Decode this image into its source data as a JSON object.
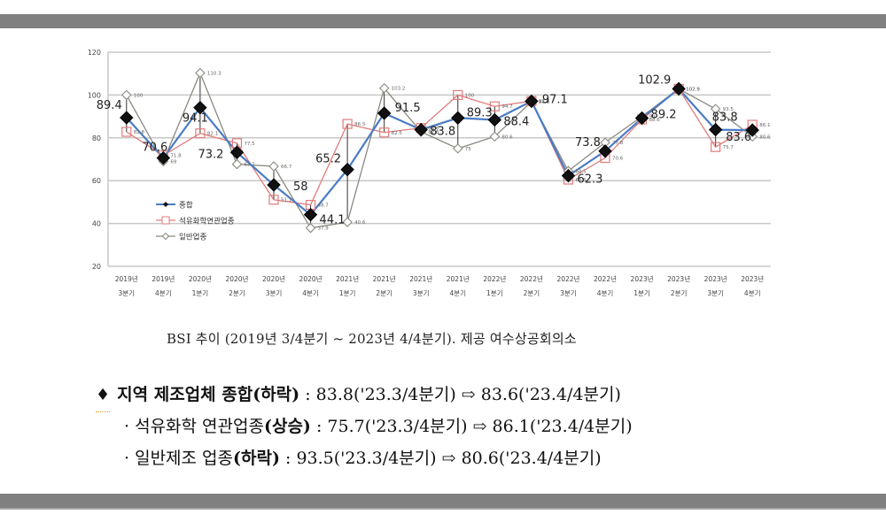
{
  "page": {
    "caption": "BSI 추이 (2019년 3/4분기 ~ 2023년 4/4분기). 제공 여수상공회의소",
    "summary": {
      "main": {
        "bullet": "♦",
        "label": "지역 제조업체 종합(하락)",
        "value": ": 83.8('23.3/4분기) ⇨ 83.6('23.4/4분기)"
      },
      "sub1": {
        "bullet": "·",
        "label_plain": "석유화학 연관업종",
        "label_bold": "(상승)",
        "value": ": 75.7('23.3/4분기) ⇨ 86.1('23.4/4분기)"
      },
      "sub2": {
        "bullet": "·",
        "label_plain": "일반제조 업종",
        "label_bold": "(하락)",
        "value": ": 93.5('23.3/4분기) ⇨ 80.6('23.4/4분기)"
      }
    }
  },
  "chart_data": {
    "type": "line",
    "title": "",
    "xlabel": "",
    "ylabel": "",
    "ylim": [
      20,
      120
    ],
    "yticks": [
      20,
      40,
      60,
      80,
      100,
      120
    ],
    "grid": true,
    "legend_position": "inside-left",
    "categories": [
      [
        "2019년",
        "3분기"
      ],
      [
        "2019년",
        "4분기"
      ],
      [
        "2020년",
        "1분기"
      ],
      [
        "2020년",
        "2분기"
      ],
      [
        "2020년",
        "3분기"
      ],
      [
        "2020년",
        "4분기"
      ],
      [
        "2021년",
        "1분기"
      ],
      [
        "2021년",
        "2분기"
      ],
      [
        "2021년",
        "3분기"
      ],
      [
        "2021년",
        "4분기"
      ],
      [
        "2022년",
        "1분기"
      ],
      [
        "2022년",
        "2분기"
      ],
      [
        "2022년",
        "3분기"
      ],
      [
        "2022년",
        "4분기"
      ],
      [
        "2023년",
        "1분기"
      ],
      [
        "2023년",
        "2분기"
      ],
      [
        "2023년",
        "3분기"
      ],
      [
        "2023년",
        "4분기"
      ]
    ],
    "series": [
      {
        "name": "종합",
        "color": "#4a7cc4",
        "marker": "filled-diamond",
        "values": [
          89.4,
          70.6,
          94.1,
          73.2,
          58,
          44.1,
          65.2,
          91.5,
          83.8,
          89.3,
          88.4,
          97.1,
          62.3,
          73.8,
          89.2,
          102.9,
          83.8,
          83.6
        ]
      },
      {
        "name": "석유화학연관업종",
        "color": "#e07c7c",
        "marker": "open-square",
        "values": [
          82.8,
          71.8,
          82.1,
          77.5,
          51.1,
          48.7,
          86.5,
          82.5,
          84.6,
          100,
          94.7,
          97.2,
          60.5,
          70.6,
          88.6,
          102.9,
          75.7,
          86.1
        ]
      },
      {
        "name": "일반업종",
        "color": "#8a8a80",
        "marker": "open-diamond",
        "values": [
          100,
          69,
          110.3,
          67.7,
          66.7,
          37.9,
          40.6,
          103.2,
          82.8,
          75,
          80.6,
          96.9,
          64.5,
          77.8,
          90,
          102.9,
          93.5,
          80.6
        ]
      }
    ]
  }
}
